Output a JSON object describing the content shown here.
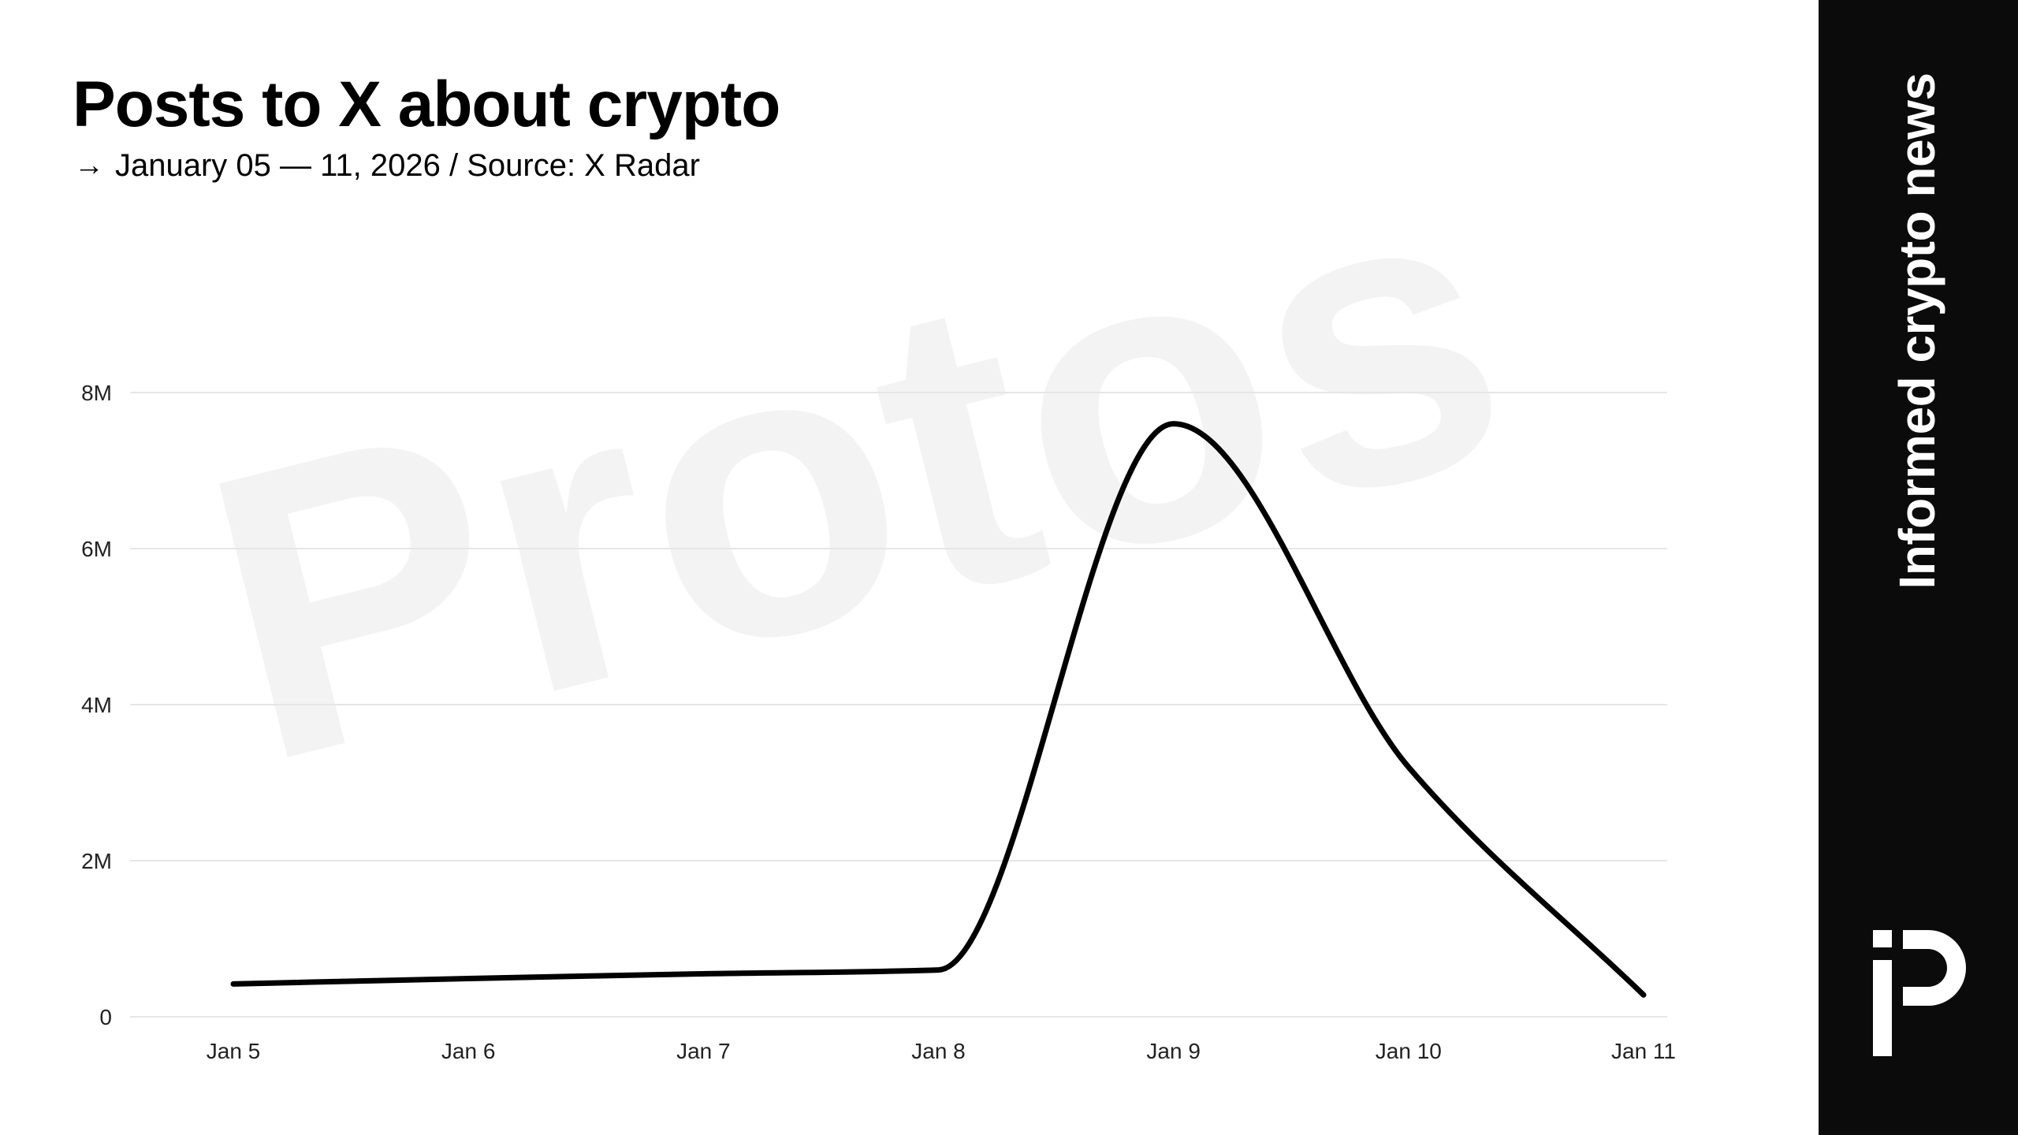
{
  "header": {
    "title": "Posts to X about crypto",
    "subtitle_arrow": "→",
    "subtitle": "January 05 — 11, 2026 / Source: X Radar"
  },
  "watermark": {
    "text": "Protos",
    "color": "#f3f3f3"
  },
  "sidebar": {
    "tagline": "Informed crypto news",
    "background": "#0b0b0b",
    "logo_icon": "protos-logo-icon"
  },
  "chart_data": {
    "type": "line",
    "title": "Posts to X about crypto",
    "subtitle": "January 05 — 11, 2026 / Source: X Radar",
    "xlabel": "",
    "ylabel": "",
    "x": [
      "Jan 5",
      "Jan 6",
      "Jan 7",
      "Jan 8",
      "Jan 9",
      "Jan 10",
      "Jan 11"
    ],
    "x_tick_labels": [
      "Jan 5",
      "Jan 6",
      "Jan 7",
      "Jan 8",
      "Jan 9",
      "Jan 10",
      "Jan 11"
    ],
    "y_tick_values": [
      0,
      2000000,
      4000000,
      6000000,
      8000000
    ],
    "y_tick_labels": [
      "0",
      "2M",
      "4M",
      "6M",
      "8M"
    ],
    "ylim": [
      0,
      8000000
    ],
    "grid": true,
    "legend": "none",
    "line_color": "#000000",
    "series": [
      {
        "values": [
          420000,
          490000,
          550000,
          600000,
          7600000,
          3200000,
          280000
        ]
      }
    ]
  }
}
